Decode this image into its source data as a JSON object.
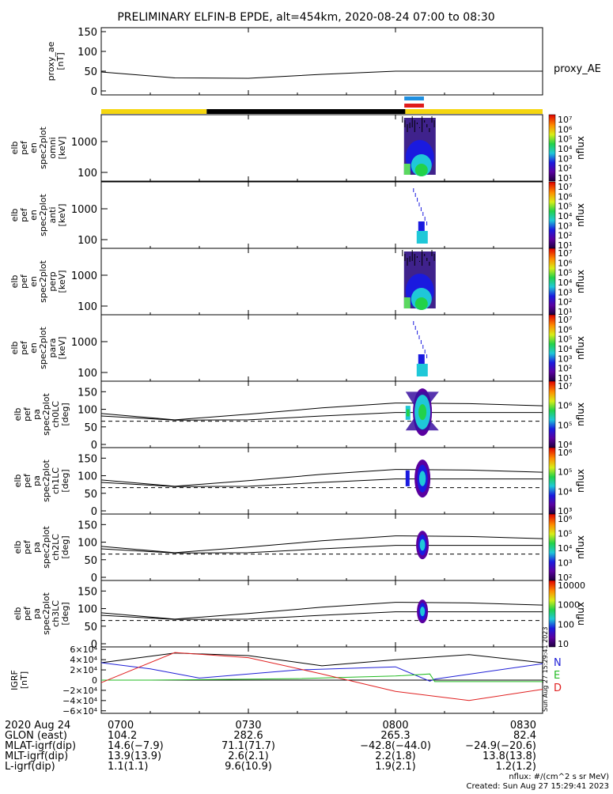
{
  "title": "PRELIMINARY ELFIN-B EPDE, alt=454km, 2020-08-24 07:00 to 08:30",
  "ae_panel": {
    "ylabel": [
      "proxy_ae",
      "[nT]"
    ],
    "yticks": [
      "150",
      "100",
      "50",
      "0"
    ],
    "legend": "proxy_AE"
  },
  "spectra_panels": [
    {
      "ylabel": [
        "elb",
        "pef",
        "en",
        "spec2plot",
        "omni",
        "[keV]"
      ],
      "yticks": [
        "1000",
        "100"
      ]
    },
    {
      "ylabel": [
        "elb",
        "pef",
        "en",
        "spec2plot",
        "anti",
        "[keV]"
      ],
      "yticks": [
        "1000",
        "100"
      ]
    },
    {
      "ylabel": [
        "elb",
        "pef",
        "en",
        "spec2plot",
        "perp",
        "[keV]"
      ],
      "yticks": [
        "1000",
        "100"
      ]
    },
    {
      "ylabel": [
        "elb",
        "pef",
        "en",
        "spec2plot",
        "para",
        "[keV]"
      ],
      "yticks": [
        "1000",
        "100"
      ]
    }
  ],
  "pa_panels": [
    {
      "ylabel": [
        "elb",
        "pef",
        "pa",
        "spec2plot",
        "ch0LC",
        "[deg]"
      ],
      "yticks": [
        "150",
        "100",
        "50",
        "0"
      ]
    },
    {
      "ylabel": [
        "elb",
        "pef",
        "pa",
        "spec2plot",
        "ch1LC",
        "[deg]"
      ],
      "yticks": [
        "150",
        "100",
        "50",
        "0"
      ]
    },
    {
      "ylabel": [
        "elb",
        "pef",
        "pa",
        "spec2plot",
        "ch2LC",
        "[deg]"
      ],
      "yticks": [
        "150",
        "100",
        "50",
        "0"
      ]
    },
    {
      "ylabel": [
        "elb",
        "pef",
        "pa",
        "spec2plot",
        "ch3LC",
        "[deg]"
      ],
      "yticks": [
        "150",
        "100",
        "50",
        "0"
      ]
    }
  ],
  "colorbars": [
    {
      "label": "nflux",
      "ticks": [
        "10⁷",
        "10⁶",
        "10⁵",
        "10⁴",
        "10³",
        "10²",
        "10¹"
      ]
    },
    {
      "label": "nflux",
      "ticks": [
        "10⁷",
        "10⁶",
        "10⁵",
        "10⁴",
        "10³",
        "10²",
        "10¹"
      ]
    },
    {
      "label": "nflux",
      "ticks": [
        "10⁷",
        "10⁶",
        "10⁵",
        "10⁴",
        "10³",
        "10²",
        "10¹"
      ]
    },
    {
      "label": "nflux",
      "ticks": [
        "10⁷",
        "10⁶",
        "10⁵",
        "10⁴",
        "10³",
        "10²",
        "10¹"
      ]
    },
    {
      "label": "nflux",
      "ticks": [
        "10⁷",
        "10⁶",
        "10⁵",
        "10⁴"
      ]
    },
    {
      "label": "nflux",
      "ticks": [
        "10⁶",
        "10⁵",
        "10⁴",
        "10³"
      ]
    },
    {
      "label": "nflux",
      "ticks": [
        "10⁶",
        "10⁵",
        "10⁴",
        "10³",
        "10²"
      ]
    },
    {
      "label": "nflux",
      "ticks": [
        "10000",
        "1000",
        "100",
        "10"
      ]
    }
  ],
  "igrf_panel": {
    "ylabel": [
      "IGRF",
      "[nT]"
    ],
    "yticks": [
      "6×10⁴",
      "4×10⁴",
      "2×10⁴",
      "0",
      "−2×10⁴",
      "−4×10⁴",
      "−6×10⁴"
    ],
    "legend": [
      {
        "label": "N",
        "color": "#1f1fd6"
      },
      {
        "label": "E",
        "color": "#22bb22"
      },
      {
        "label": "D",
        "color": "#e02020"
      }
    ]
  },
  "stamp": "Sun Aug 27 15:29:41 2023",
  "footer": {
    "rows": [
      {
        "label": "2020 Aug 24",
        "values": [
          "0700",
          "0730",
          "0800",
          "0830"
        ]
      },
      {
        "label": "GLON (east)",
        "values": [
          "104.2",
          "282.6",
          "265.3",
          "82.4"
        ]
      },
      {
        "label": "MLAT-igrf(dip)",
        "values": [
          "14.6(−7.9)",
          "71.1(71.7)",
          "−42.8(−44.0)",
          "−24.9(−20.6)"
        ]
      },
      {
        "label": "MLT-igrf(dip)",
        "values": [
          "13.9(13.9)",
          "2.6(2.1)",
          "2.2(1.8)",
          "13.8(13.8)"
        ]
      },
      {
        "label": "L-igrf(dip)",
        "values": [
          "1.1(1.1)",
          "9.6(10.9)",
          "1.9(2.1)",
          "1.2(1.2)"
        ]
      }
    ],
    "units_note": "nflux: #/(cm^2 s sr MeV)",
    "created": "Created: Sun Aug 27 15:29:41 2023"
  },
  "chart_data": {
    "type": "line",
    "x_range": [
      "07:00",
      "08:30"
    ],
    "x_ticks": [
      "0700",
      "0730",
      "0800",
      "0830"
    ],
    "proxy_ae": {
      "ylim": [
        0,
        150
      ],
      "x": [
        "07:00",
        "07:15",
        "07:30",
        "07:45",
        "08:00",
        "08:15",
        "08:30"
      ],
      "values": [
        48,
        33,
        32,
        42,
        50,
        50,
        50
      ]
    },
    "bars": {
      "orbit_segments": [
        {
          "start": "07:00",
          "end": "07:21.5",
          "color": "#f5d60f"
        },
        {
          "start": "07:21.5",
          "end": "08:02",
          "color": "#000000"
        },
        {
          "start": "08:02",
          "end": "08:30",
          "color": "#f5d60f"
        }
      ],
      "science_zones": [
        {
          "start": "08:01.8",
          "end": "08:05.8",
          "color": "#1e8fe0"
        },
        {
          "start": "08:01.8",
          "end": "08:05.8",
          "color": "#e01a1a"
        }
      ]
    },
    "pa_lines": {
      "ylim": [
        0,
        180
      ],
      "x": [
        "07:00",
        "07:15",
        "07:30",
        "07:45",
        "08:00",
        "08:15",
        "08:30"
      ],
      "upper": [
        88,
        70,
        86,
        104,
        118,
        116,
        110
      ],
      "lower": [
        81,
        69,
        70,
        81,
        91,
        91,
        91
      ],
      "dashed": 66
    },
    "igrf": {
      "ylim": [
        -65000,
        65000
      ],
      "series": [
        {
          "name": "N",
          "color": "#1f1fd6",
          "x": [
            "07:00",
            "07:10",
            "07:20",
            "07:40",
            "08:00",
            "08:07",
            "08:08",
            "08:30"
          ],
          "values": [
            34000,
            22000,
            4000,
            20000,
            26000,
            -2000,
            2000,
            32000
          ]
        },
        {
          "name": "E",
          "color": "#22bb22",
          "x": [
            "07:00",
            "07:10",
            "07:20",
            "07:40",
            "08:00",
            "08:07",
            "08:08",
            "08:30"
          ],
          "values": [
            0,
            0,
            1000,
            3000,
            8000,
            12000,
            -3000,
            -3000
          ]
        },
        {
          "name": "D",
          "color": "#e02020",
          "x": [
            "07:00",
            "07:15",
            "07:30",
            "07:45",
            "08:00",
            "08:15",
            "08:30"
          ],
          "values": [
            -5000,
            54000,
            44000,
            12000,
            -22000,
            -40000,
            -18000
          ]
        }
      ],
      "total": {
        "x": [
          "07:00",
          "07:15",
          "07:30",
          "07:45",
          "08:00",
          "08:15",
          "08:30"
        ],
        "values": [
          34000,
          53000,
          48000,
          28000,
          40000,
          50000,
          34000
        ]
      }
    }
  }
}
